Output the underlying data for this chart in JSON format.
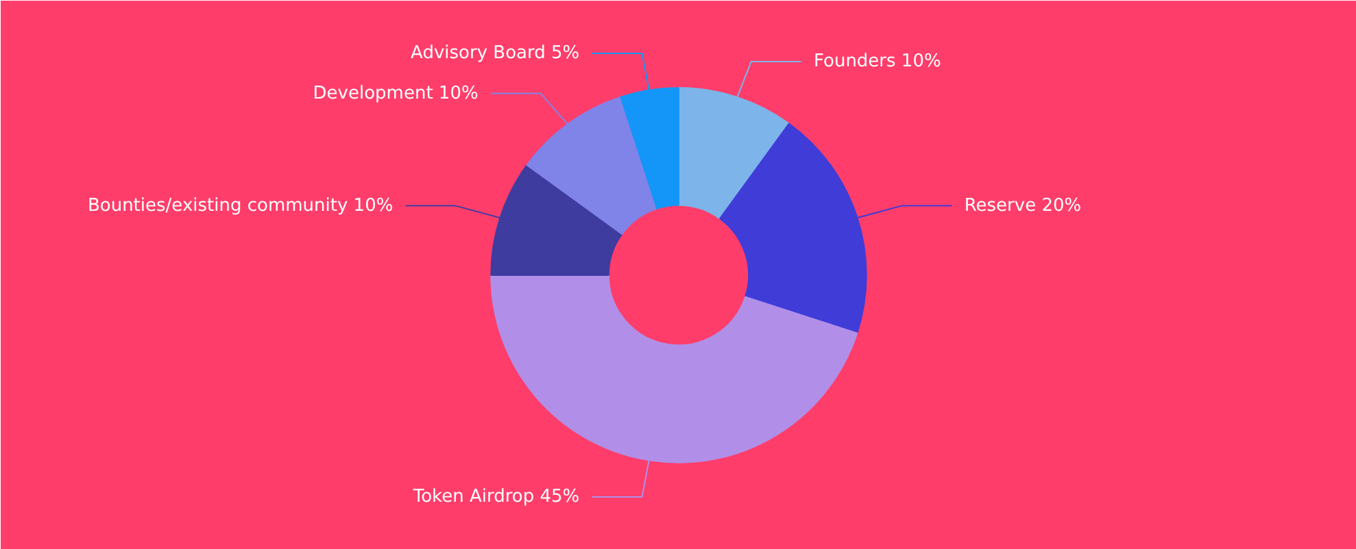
{
  "chart_data": {
    "type": "donut",
    "categories": [
      "Founders",
      "Reserve",
      "Token Airdrop",
      "Bounties/existing community",
      "Development",
      "Advisory Board"
    ],
    "values": [
      10,
      20,
      45,
      10,
      10,
      5
    ],
    "value_labels": [
      "10%",
      "20%",
      "45%",
      "10%",
      "10%",
      "5%"
    ],
    "colors": [
      "#7db4ea",
      "#3f3cd8",
      "#b18fe8",
      "#3f3ca0",
      "#8083e8",
      "#1496f8"
    ],
    "legend": false
  }
}
